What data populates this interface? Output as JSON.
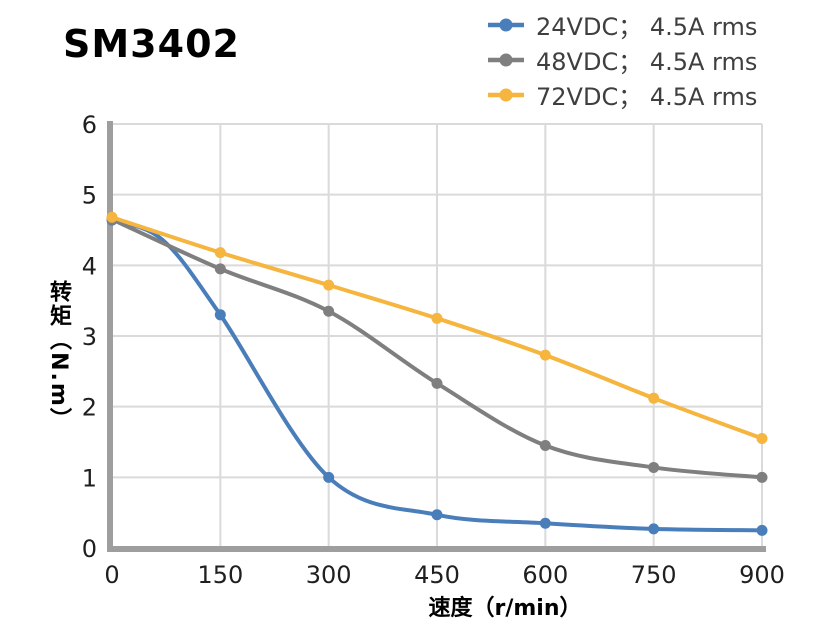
{
  "page": {
    "title": "SM3402"
  },
  "colors": {
    "series_blue": "#4a7ebb",
    "series_gray": "#7f7f7f",
    "series_amber": "#f5b53e",
    "grid": "#dadada",
    "axis": "#9e9e9e",
    "tick_text": "#1f1f1f",
    "legend_text": "#3f3f3f",
    "title_text": "#000000"
  },
  "chart_data": {
    "type": "line",
    "title": "SM3402",
    "xlabel": "速度（r/min）",
    "ylabel": "转矩（N.m）",
    "xlim": [
      0,
      900
    ],
    "ylim": [
      0,
      6
    ],
    "grid": true,
    "legend_position": "top-right",
    "marker": "circle",
    "x": [
      0,
      150,
      300,
      450,
      600,
      750,
      900
    ],
    "x_ticks": [
      "0",
      "150",
      "300",
      "450",
      "600",
      "750",
      "900"
    ],
    "y_ticks": [
      "0",
      "1",
      "2",
      "3",
      "4",
      "5",
      "6"
    ],
    "series": [
      {
        "name": "24VDC； 4.5A rms",
        "color": "#4a7ebb",
        "values": [
          4.64,
          3.3,
          1.0,
          0.47,
          0.35,
          0.27,
          0.25
        ],
        "curve_extra": [
          {
            "x": 70,
            "y": 4.36
          }
        ]
      },
      {
        "name": "48VDC； 4.5A rms",
        "color": "#7f7f7f",
        "values": [
          4.65,
          3.95,
          3.35,
          2.33,
          1.45,
          1.14,
          1.0
        ],
        "curve_extra": []
      },
      {
        "name": "72VDC； 4.5A rms",
        "color": "#f5b53e",
        "values": [
          4.68,
          4.18,
          3.72,
          3.25,
          2.73,
          2.12,
          1.55
        ],
        "curve_extra": []
      }
    ]
  }
}
